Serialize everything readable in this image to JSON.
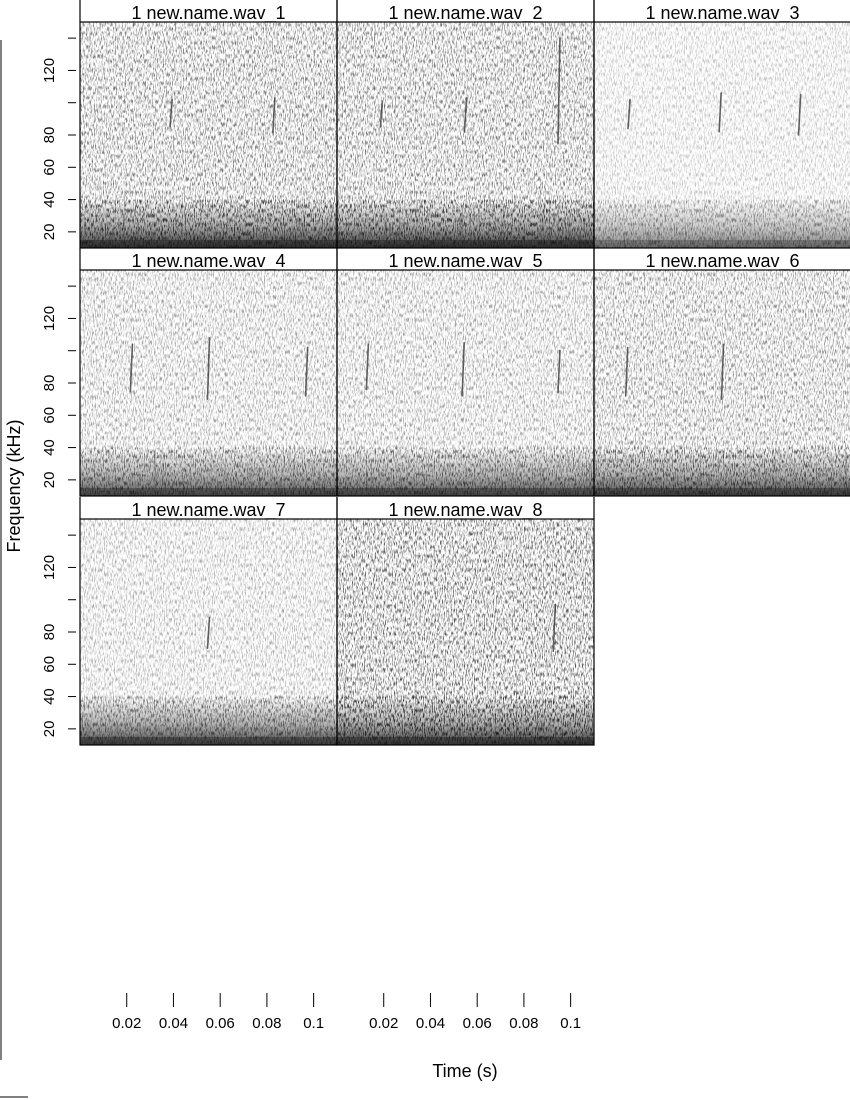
{
  "chart_data": {
    "type": "heatmap",
    "title": "",
    "xlabel": "Time (s)",
    "ylabel": "Frequency (kHz)",
    "ylim": [
      10,
      150
    ],
    "xlim": [
      0,
      0.11
    ],
    "yticks": [
      20,
      40,
      60,
      80,
      120
    ],
    "yminor_ticks": [
      140,
      100
    ],
    "xticks": [
      0.02,
      0.04,
      0.06,
      0.08,
      0.1
    ],
    "xtick_labels": [
      "0.02",
      "0.04",
      "0.06",
      "0.08",
      "0.1"
    ],
    "colormap": "greyscale",
    "layout": {
      "rows": 3,
      "cols": 3
    },
    "panels": [
      {
        "title": "1 new.name.wav_1",
        "noise": 1.0,
        "low_band": 0.9,
        "chirps": [
          {
            "t": 0.039,
            "f0": 85,
            "f1": 102
          },
          {
            "t": 0.083,
            "f0": 82,
            "f1": 103
          }
        ]
      },
      {
        "title": "1 new.name.wav_2",
        "noise": 1.0,
        "low_band": 0.9,
        "chirps": [
          {
            "t": 0.019,
            "f0": 85,
            "f1": 101
          },
          {
            "t": 0.055,
            "f0": 82,
            "f1": 103
          },
          {
            "t": 0.095,
            "f0": 75,
            "f1": 140
          }
        ]
      },
      {
        "title": "1 new.name.wav_3",
        "noise": 0.45,
        "low_band": 0.55,
        "chirps": [
          {
            "t": 0.015,
            "f0": 84,
            "f1": 102
          },
          {
            "t": 0.054,
            "f0": 82,
            "f1": 106
          },
          {
            "t": 0.088,
            "f0": 80,
            "f1": 105
          }
        ]
      },
      {
        "title": "1 new.name.wav_4",
        "noise": 0.7,
        "low_band": 0.75,
        "chirps": [
          {
            "t": 0.022,
            "f0": 75,
            "f1": 104
          },
          {
            "t": 0.055,
            "f0": 70,
            "f1": 108
          },
          {
            "t": 0.097,
            "f0": 72,
            "f1": 102
          }
        ]
      },
      {
        "title": "1 new.name.wav_5",
        "noise": 0.7,
        "low_band": 0.75,
        "chirps": [
          {
            "t": 0.013,
            "f0": 76,
            "f1": 104
          },
          {
            "t": 0.054,
            "f0": 72,
            "f1": 105
          },
          {
            "t": 0.095,
            "f0": 74,
            "f1": 100
          }
        ]
      },
      {
        "title": "1 new.name.wav_6",
        "noise": 0.85,
        "low_band": 0.8,
        "chirps": [
          {
            "t": 0.014,
            "f0": 72,
            "f1": 102
          },
          {
            "t": 0.055,
            "f0": 70,
            "f1": 104
          }
        ]
      },
      {
        "title": "1 new.name.wav_7",
        "noise": 0.6,
        "low_band": 0.8,
        "chirps": [
          {
            "t": 0.055,
            "f0": 70,
            "f1": 89
          }
        ]
      },
      {
        "title": "1 new.name.wav_8",
        "noise": 1.2,
        "low_band": 0.85,
        "chirps": [
          {
            "t": 0.093,
            "f0": 68,
            "f1": 97
          }
        ]
      }
    ]
  }
}
